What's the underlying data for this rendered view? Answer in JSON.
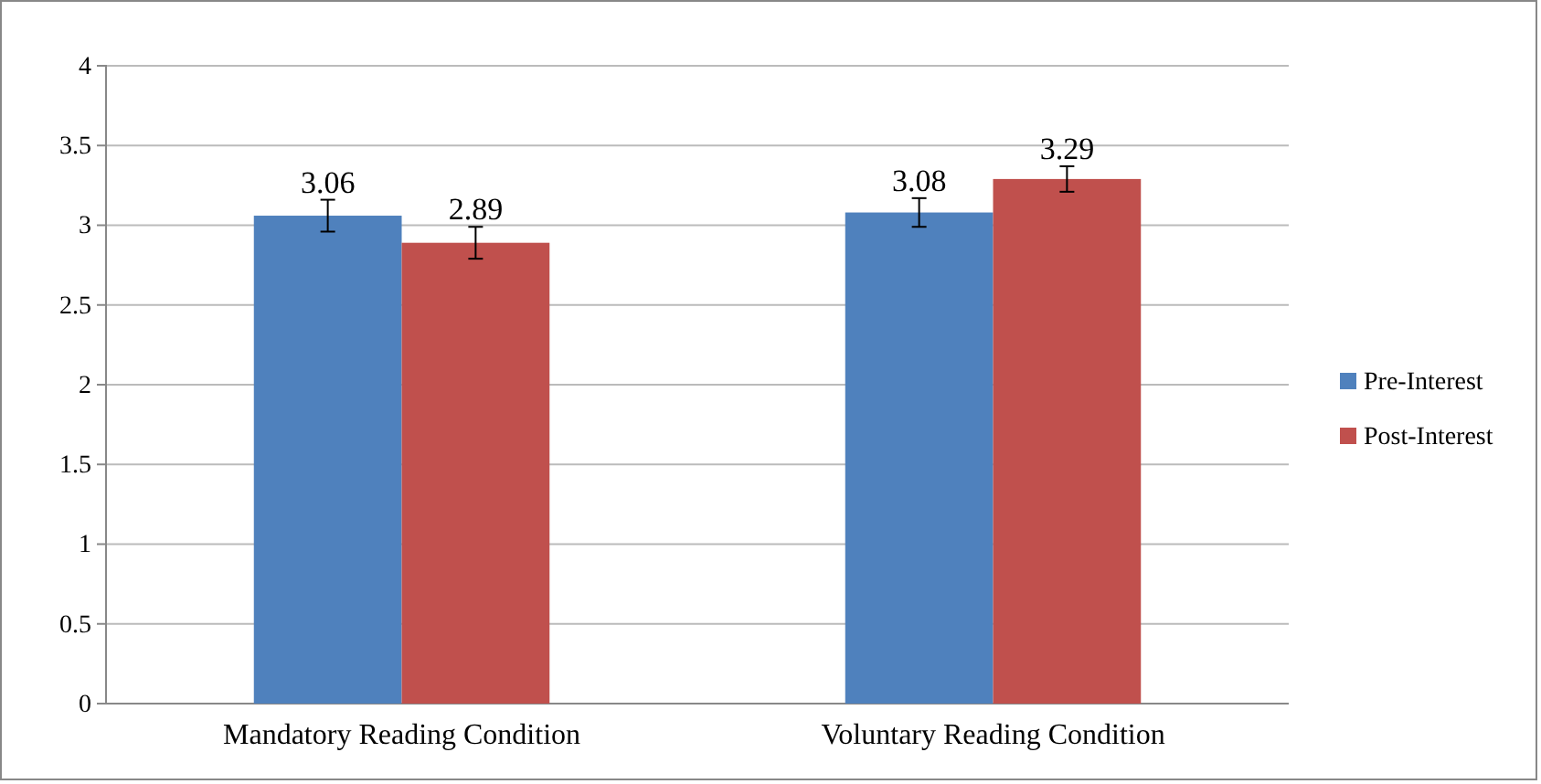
{
  "chart_data": {
    "type": "bar",
    "categories": [
      "Mandatory Reading Condition",
      "Voluntary Reading Condition"
    ],
    "series": [
      {
        "name": "Pre-Interest",
        "color": "#4f81bd",
        "values": [
          3.06,
          3.08
        ],
        "errors": [
          0.1,
          0.09
        ]
      },
      {
        "name": "Post-Interest",
        "color": "#c0504d",
        "values": [
          2.89,
          3.29
        ],
        "errors": [
          0.1,
          0.08
        ]
      }
    ],
    "ylim": [
      0,
      4
    ],
    "yticks": [
      0,
      0.5,
      1,
      1.5,
      2,
      2.5,
      3,
      3.5,
      4
    ],
    "grid": "y",
    "legend": "right",
    "data_labels": true
  }
}
